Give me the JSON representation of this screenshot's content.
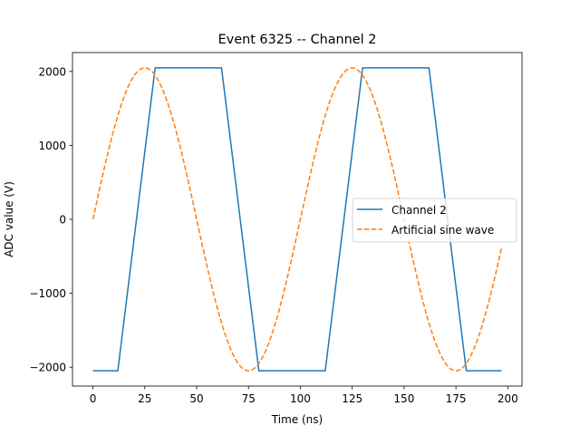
{
  "chart_data": {
    "type": "line",
    "title": "Event 6325 -- Channel 2",
    "xlabel": "Time (ns)",
    "ylabel": "ADC value (V)",
    "xlim": [
      -9.85,
      206.85
    ],
    "ylim": [
      -2255,
      2255
    ],
    "xticks": [
      0,
      25,
      50,
      75,
      100,
      125,
      150,
      175,
      200
    ],
    "yticks": [
      -2000,
      -1000,
      0,
      1000,
      2000
    ],
    "xtick_labels": [
      "0",
      "25",
      "50",
      "75",
      "100",
      "125",
      "150",
      "175",
      "200"
    ],
    "ytick_labels": [
      "−2000",
      "−1000",
      "0",
      "1000",
      "2000"
    ],
    "grid": false,
    "legend_position": "center-right",
    "series": [
      {
        "name": "Channel 2",
        "color": "#1f77b4",
        "style": "solid",
        "x": [
          0,
          12,
          30,
          62,
          80,
          112,
          130,
          162,
          180,
          197
        ],
        "y": [
          -2048,
          -2048,
          2048,
          2048,
          -2048,
          -2048,
          2048,
          2048,
          -2048,
          -2048
        ]
      },
      {
        "name": "Artificial sine wave",
        "color": "#ff7f0e",
        "style": "dashed",
        "function": "sine",
        "amplitude": 2048,
        "period": 100,
        "x_start": 0,
        "x_end": 197
      }
    ]
  }
}
